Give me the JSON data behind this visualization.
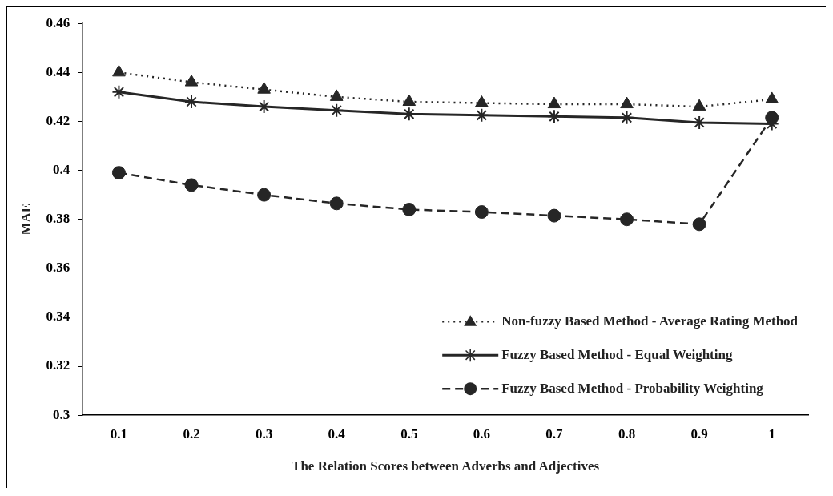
{
  "chart_data": {
    "type": "line",
    "xlabel": "The Relation Scores between Adverbs and Adjectives",
    "ylabel": "MAE",
    "categories": [
      "0.1",
      "0.2",
      "0.3",
      "0.4",
      "0.5",
      "0.6",
      "0.7",
      "0.8",
      "0.9",
      "1"
    ],
    "series": [
      {
        "name": "Non-fuzzy Based Method - Average Rating Method",
        "color": "#262626",
        "marker": "triangle",
        "line_style": "dotted",
        "values": [
          0.44,
          0.436,
          0.433,
          0.43,
          0.428,
          0.4275,
          0.427,
          0.427,
          0.426,
          0.429
        ]
      },
      {
        "name": "Fuzzy Based Method - Equal Weighting",
        "color": "#262626",
        "marker": "cross",
        "line_style": "solid",
        "values": [
          0.432,
          0.428,
          0.426,
          0.4245,
          0.423,
          0.4225,
          0.422,
          0.4215,
          0.4195,
          0.419
        ]
      },
      {
        "name": "Fuzzy Based Method - Probability Weighting",
        "color": "#262626",
        "marker": "circle",
        "line_style": "dashed",
        "values": [
          0.399,
          0.394,
          0.39,
          0.3865,
          0.384,
          0.383,
          0.3815,
          0.38,
          0.378,
          0.4215
        ]
      }
    ],
    "ylim": [
      0.3,
      0.46
    ],
    "yticks": [
      0.3,
      0.32,
      0.34,
      0.36,
      0.38,
      0.4,
      0.42,
      0.44,
      0.46
    ],
    "grid": false,
    "legend": "bottom right"
  }
}
